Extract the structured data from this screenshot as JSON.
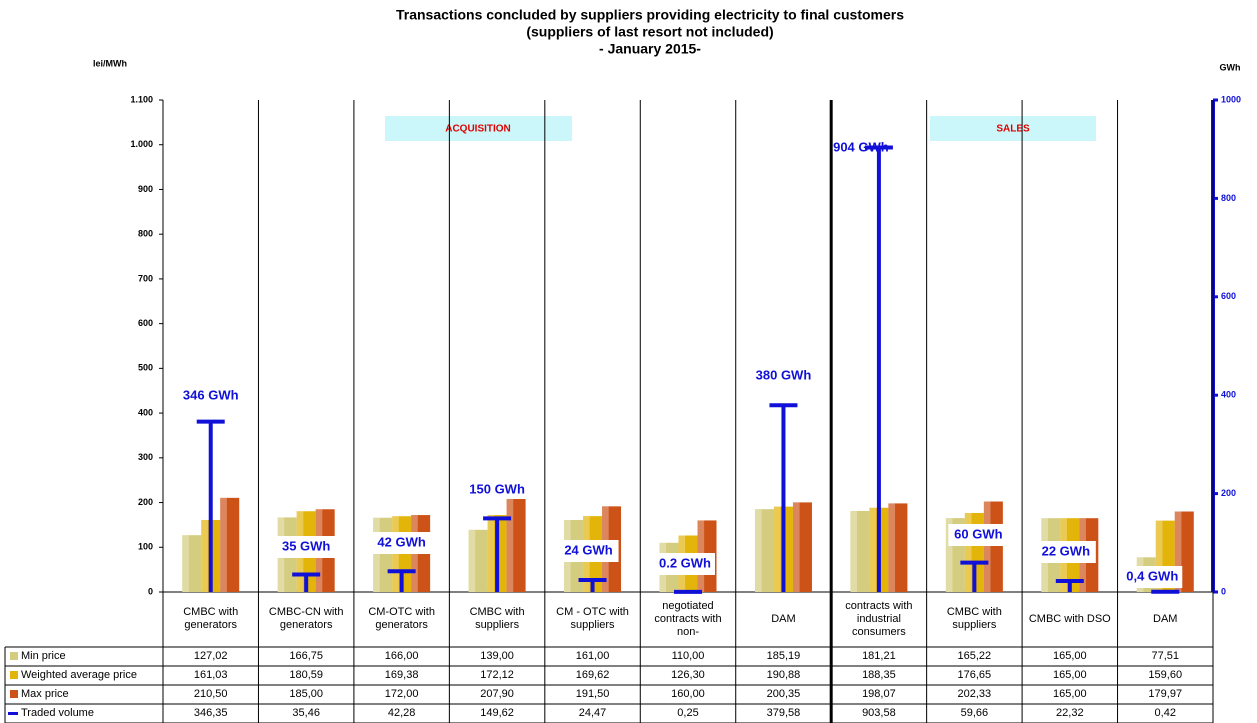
{
  "chart_data": {
    "type": "bar",
    "title": "Transactions concluded by suppliers providing electricity to final customers",
    "subtitle": "(suppliers of last resort not included)",
    "period": "- January 2015-",
    "ylabel": "lei/MWh",
    "y2label": "GWh",
    "section_labels": [
      "ACQUISITION",
      "SALES"
    ],
    "categories": [
      "CMBC with generators",
      "CMBC-CN with generators",
      "CM-OTC with generators",
      "CMBC with suppliers",
      "CM - OTC with suppliers",
      "negotiated contracts with non-",
      "DAM",
      "contracts with industrial consumers",
      "CMBC with suppliers",
      "CMBC with DSO",
      "DAM"
    ],
    "series": [
      {
        "name": "Min price",
        "color": "#d4cc7e",
        "values": [
          127.02,
          166.75,
          166.0,
          139.0,
          161.0,
          110.0,
          185.19,
          181.21,
          165.22,
          165.0,
          77.51
        ],
        "value_labels": [
          "127,02",
          "166,75",
          "166,00",
          "139,00",
          "161,00",
          "110,00",
          "185,19",
          "181,21",
          "165,22",
          "165,00",
          "77,51"
        ]
      },
      {
        "name": "Weighted average price",
        "color": "#e3b40a",
        "values": [
          161.03,
          180.59,
          169.38,
          172.12,
          169.62,
          126.3,
          190.88,
          188.35,
          176.65,
          165.0,
          159.6
        ],
        "value_labels": [
          "161,03",
          "180,59",
          "169,38",
          "172,12",
          "169,62",
          "126,30",
          "190,88",
          "188,35",
          "176,65",
          "165,00",
          "159,60"
        ]
      },
      {
        "name": "Max price",
        "color": "#cc5218",
        "values": [
          210.5,
          185.0,
          172.0,
          207.9,
          191.5,
          160.0,
          200.35,
          198.07,
          202.33,
          165.0,
          179.97
        ],
        "value_labels": [
          "210,50",
          "185,00",
          "172,00",
          "207,90",
          "191,50",
          "160,00",
          "200,35",
          "198,07",
          "202,33",
          "165,00",
          "179,97"
        ]
      },
      {
        "name": "Traded volume",
        "type": "drop-line",
        "axis": "y2",
        "color": "#1010d8",
        "values": [
          346.35,
          35.46,
          42.28,
          149.62,
          24.47,
          0.25,
          379.58,
          903.58,
          59.66,
          22.32,
          0.42
        ],
        "value_labels": [
          "346,35",
          "35,46",
          "42,28",
          "149,62",
          "24,47",
          "0,25",
          "379,58",
          "903,58",
          "59,66",
          "22,32",
          "0,42"
        ],
        "annotations": [
          "346 GWh",
          "35 GWh",
          "42 GWh",
          "150 GWh",
          "24 GWh",
          "0.2 GWh",
          "380 GWh",
          "904 GWh",
          "60 GWh",
          "22 GWh",
          "0,4 GWh"
        ]
      }
    ],
    "ylim": [
      0,
      1100
    ],
    "yticks": [
      0,
      100,
      200,
      300,
      400,
      500,
      600,
      700,
      800,
      900,
      {
        "value": 1000,
        "label": "1.000"
      },
      {
        "value": 1100,
        "label": "1.100"
      }
    ],
    "y2lim": [
      0,
      1000
    ],
    "y2ticks": [
      0,
      200,
      400,
      600,
      800,
      1000
    ]
  }
}
